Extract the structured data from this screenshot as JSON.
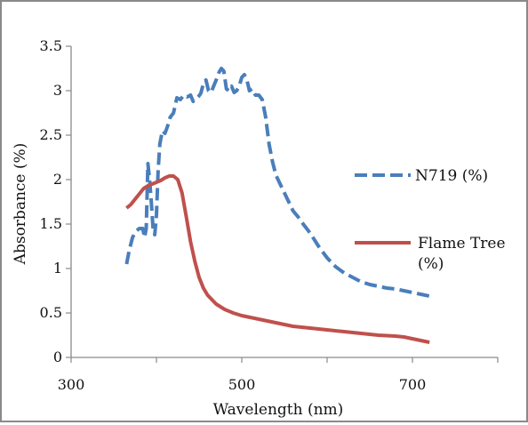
{
  "chart_data": {
    "type": "line",
    "title": "",
    "xlabel": "Wavelength (nm)",
    "ylabel": "Absorbance (%)",
    "xlim": [
      300,
      800
    ],
    "ylim": [
      0,
      3.5
    ],
    "x_ticks": [
      300,
      500,
      700
    ],
    "y_ticks": [
      0,
      0.5,
      1,
      1.5,
      2,
      2.5,
      3,
      3.5
    ],
    "y_tick_labels": [
      "0",
      "0.5",
      "1",
      "1.5",
      "2",
      "2.5",
      "3",
      "3.5"
    ],
    "grid": false,
    "legend_position": "right",
    "series": [
      {
        "name": "N719 (%)",
        "color": "#4a7ebb",
        "dash": true,
        "points": [
          [
            365,
            1.05
          ],
          [
            368,
            1.2
          ],
          [
            372,
            1.35
          ],
          [
            376,
            1.42
          ],
          [
            380,
            1.45
          ],
          [
            384,
            1.45
          ],
          [
            386,
            1.35
          ],
          [
            388,
            1.45
          ],
          [
            390,
            2.18
          ],
          [
            392,
            2.0
          ],
          [
            394,
            1.75
          ],
          [
            396,
            1.45
          ],
          [
            398,
            1.38
          ],
          [
            400,
            1.6
          ],
          [
            402,
            2.1
          ],
          [
            404,
            2.4
          ],
          [
            407,
            2.55
          ],
          [
            410,
            2.52
          ],
          [
            413,
            2.6
          ],
          [
            416,
            2.7
          ],
          [
            420,
            2.75
          ],
          [
            424,
            2.92
          ],
          [
            428,
            2.9
          ],
          [
            432,
            2.95
          ],
          [
            436,
            2.93
          ],
          [
            440,
            2.95
          ],
          [
            443,
            2.88
          ],
          [
            446,
            2.9
          ],
          [
            449,
            2.93
          ],
          [
            452,
            2.97
          ],
          [
            455,
            3.08
          ],
          [
            458,
            3.12
          ],
          [
            461,
            3.0
          ],
          [
            464,
            2.98
          ],
          [
            467,
            3.05
          ],
          [
            470,
            3.12
          ],
          [
            473,
            3.2
          ],
          [
            476,
            3.25
          ],
          [
            479,
            3.22
          ],
          [
            482,
            3.02
          ],
          [
            485,
            3.0
          ],
          [
            488,
            3.05
          ],
          [
            491,
            2.98
          ],
          [
            494,
            3.0
          ],
          [
            497,
            3.05
          ],
          [
            500,
            3.15
          ],
          [
            503,
            3.18
          ],
          [
            506,
            3.12
          ],
          [
            509,
            3.0
          ],
          [
            512,
            3.02
          ],
          [
            516,
            2.95
          ],
          [
            520,
            2.95
          ],
          [
            524,
            2.9
          ],
          [
            528,
            2.7
          ],
          [
            532,
            2.4
          ],
          [
            536,
            2.2
          ],
          [
            540,
            2.05
          ],
          [
            545,
            1.95
          ],
          [
            550,
            1.85
          ],
          [
            555,
            1.75
          ],
          [
            560,
            1.65
          ],
          [
            566,
            1.58
          ],
          [
            572,
            1.5
          ],
          [
            580,
            1.4
          ],
          [
            590,
            1.25
          ],
          [
            600,
            1.12
          ],
          [
            610,
            1.02
          ],
          [
            620,
            0.95
          ],
          [
            630,
            0.9
          ],
          [
            640,
            0.85
          ],
          [
            650,
            0.82
          ],
          [
            660,
            0.8
          ],
          [
            670,
            0.78
          ],
          [
            680,
            0.77
          ],
          [
            690,
            0.75
          ],
          [
            700,
            0.73
          ],
          [
            710,
            0.71
          ],
          [
            720,
            0.69
          ]
        ]
      },
      {
        "name": "Flame Tree (%)",
        "name_lines": [
          "Flame Tree",
          "(%)"
        ],
        "color": "#c0504d",
        "dash": false,
        "points": [
          [
            365,
            1.68
          ],
          [
            370,
            1.72
          ],
          [
            375,
            1.78
          ],
          [
            380,
            1.84
          ],
          [
            385,
            1.9
          ],
          [
            390,
            1.93
          ],
          [
            395,
            1.95
          ],
          [
            400,
            1.97
          ],
          [
            405,
            1.99
          ],
          [
            410,
            2.02
          ],
          [
            415,
            2.04
          ],
          [
            420,
            2.04
          ],
          [
            425,
            2.0
          ],
          [
            430,
            1.85
          ],
          [
            435,
            1.58
          ],
          [
            440,
            1.3
          ],
          [
            445,
            1.08
          ],
          [
            450,
            0.9
          ],
          [
            455,
            0.78
          ],
          [
            460,
            0.7
          ],
          [
            470,
            0.6
          ],
          [
            480,
            0.54
          ],
          [
            490,
            0.5
          ],
          [
            500,
            0.47
          ],
          [
            510,
            0.45
          ],
          [
            520,
            0.43
          ],
          [
            530,
            0.41
          ],
          [
            540,
            0.39
          ],
          [
            550,
            0.37
          ],
          [
            560,
            0.35
          ],
          [
            570,
            0.34
          ],
          [
            580,
            0.33
          ],
          [
            600,
            0.31
          ],
          [
            620,
            0.29
          ],
          [
            640,
            0.27
          ],
          [
            660,
            0.25
          ],
          [
            680,
            0.24
          ],
          [
            690,
            0.23
          ],
          [
            700,
            0.21
          ],
          [
            710,
            0.19
          ],
          [
            720,
            0.17
          ]
        ]
      }
    ]
  }
}
